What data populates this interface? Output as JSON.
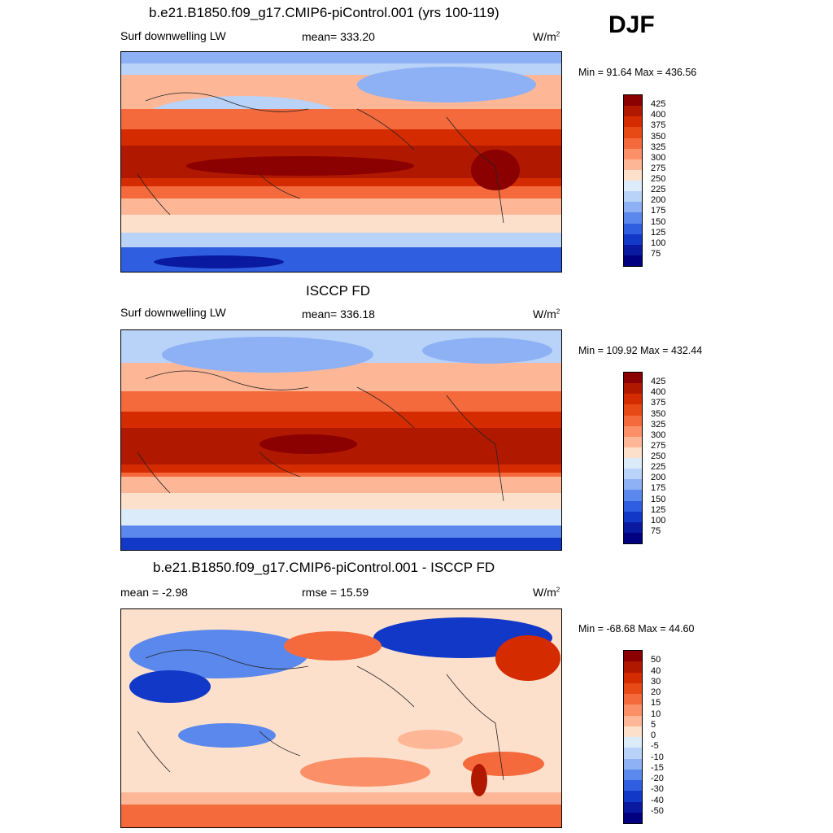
{
  "season": "DJF",
  "panels": [
    {
      "title": "b.e21.B1850.f09_g17.CMIP6-piControl.001 (yrs 100-119)",
      "left": "Surf downwelling LW",
      "center": "mean= 333.20",
      "units": "W/m",
      "units_sup": "2",
      "minmax": "Min =  91.64 Max = 436.56"
    },
    {
      "title": "ISCCP FD",
      "left": "Surf downwelling LW",
      "center": "mean= 336.18",
      "units": "W/m",
      "units_sup": "2",
      "minmax": "Min = 109.92 Max = 432.44"
    },
    {
      "title": "b.e21.B1850.f09_g17.CMIP6-piControl.001 - ISCCP FD",
      "left": "mean =  -2.98",
      "center": "rmse =  15.59",
      "units": "W/m",
      "units_sup": "2",
      "minmax": "Min = -68.68 Max =  44.60"
    }
  ],
  "colorbars": {
    "absolute": {
      "labels": [
        "425",
        "400",
        "375",
        "350",
        "325",
        "300",
        "275",
        "250",
        "225",
        "200",
        "175",
        "150",
        "125",
        "100",
        "75"
      ],
      "colors": [
        "#8b0000",
        "#b01800",
        "#d42c00",
        "#e84a16",
        "#f56a3c",
        "#fb9068",
        "#fdb797",
        "#fde0cc",
        "#dcebfa",
        "#b8d2f8",
        "#8db1f4",
        "#5b88ec",
        "#2f5fe0",
        "#1238c8",
        "#0a1aa0",
        "#000080"
      ]
    },
    "difference": {
      "labels": [
        "50",
        "40",
        "30",
        "20",
        "15",
        "10",
        "5",
        "0",
        "-5",
        "-10",
        "-15",
        "-20",
        "-30",
        "-40",
        "-50"
      ],
      "colors": [
        "#8b0000",
        "#b01800",
        "#d42c00",
        "#e84a16",
        "#f56a3c",
        "#fb9068",
        "#fdb797",
        "#fde0cc",
        "#dcebfa",
        "#b8d2f8",
        "#8db1f4",
        "#5b88ec",
        "#2f5fe0",
        "#1238c8",
        "#0a1aa0",
        "#000080"
      ]
    }
  }
}
